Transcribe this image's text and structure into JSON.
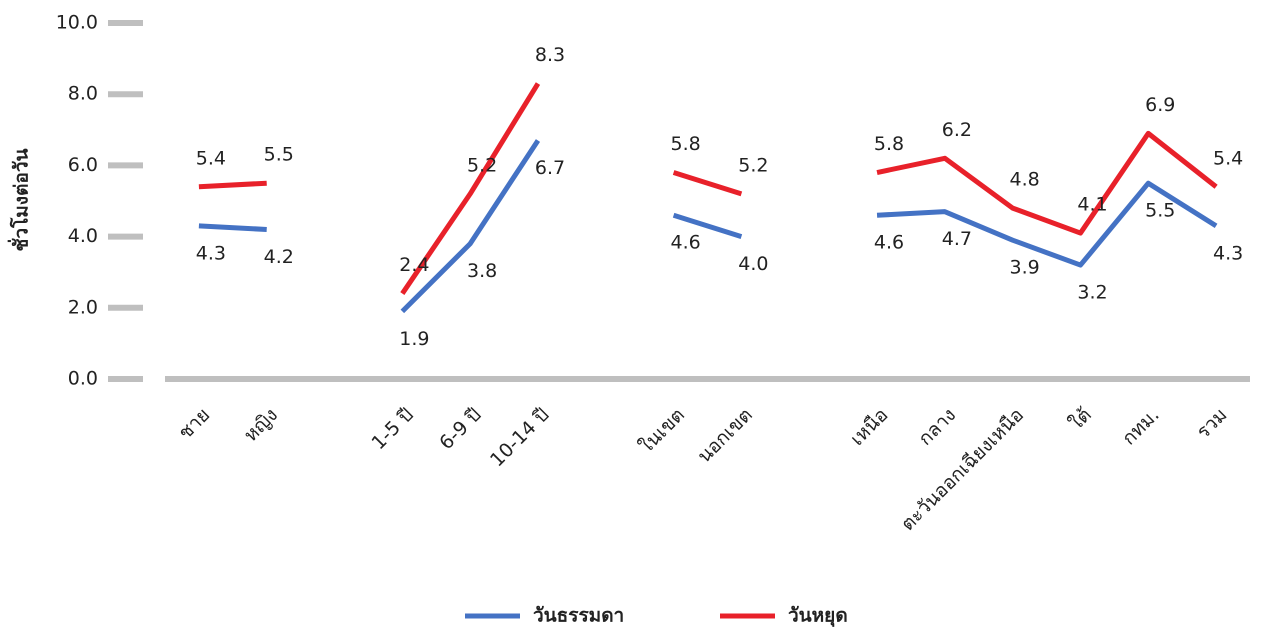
{
  "chart_data": {
    "type": "line",
    "y_label": "ชั่วโมงต่อวัน",
    "categories": [
      "ชาย",
      "หญิง",
      null,
      "1-5 ปี",
      "6-9 ปี",
      "10-14 ปี",
      null,
      "ในเขต",
      "นอกเขต",
      null,
      "เหนือ",
      "กลาง",
      "ตะวันออกเฉียงเหนือ",
      "ใต้",
      "กทม.",
      "รวม"
    ],
    "series": [
      {
        "name": "วันธรรมดา",
        "color": "#4472c4",
        "values": [
          4.3,
          4.2,
          null,
          1.9,
          3.8,
          6.7,
          null,
          4.6,
          4.0,
          null,
          4.6,
          4.7,
          3.9,
          3.2,
          5.5,
          4.3
        ],
        "value_labels": [
          "4.3",
          "4.2",
          null,
          "1.9",
          "3.8",
          "6.7",
          null,
          "4.6",
          "4.0",
          null,
          "4.6",
          "4.7",
          "3.9",
          "3.2",
          "5.5",
          "4.3"
        ]
      },
      {
        "name": "วันหยุด",
        "color": "#e8212a",
        "values": [
          5.4,
          5.5,
          null,
          2.4,
          5.2,
          8.3,
          null,
          5.8,
          5.2,
          null,
          5.8,
          6.2,
          4.8,
          4.1,
          6.9,
          5.4
        ],
        "value_labels": [
          "5.4",
          "5.5",
          null,
          "2.4",
          "5.2",
          "8.3",
          null,
          "5.8",
          "5.2",
          null,
          "5.8",
          "6.2",
          "4.8",
          "4.1",
          "6.9",
          "5.4"
        ]
      }
    ],
    "ylim": [
      0,
      10
    ],
    "yticks": [
      {
        "value": 0,
        "label": "0.0"
      },
      {
        "value": 2,
        "label": "2.0"
      },
      {
        "value": 4,
        "label": "4.0"
      },
      {
        "value": 6,
        "label": "6.0"
      },
      {
        "value": 8,
        "label": "8.0"
      },
      {
        "value": 10,
        "label": "10.0"
      }
    ],
    "legend": "bottom"
  }
}
